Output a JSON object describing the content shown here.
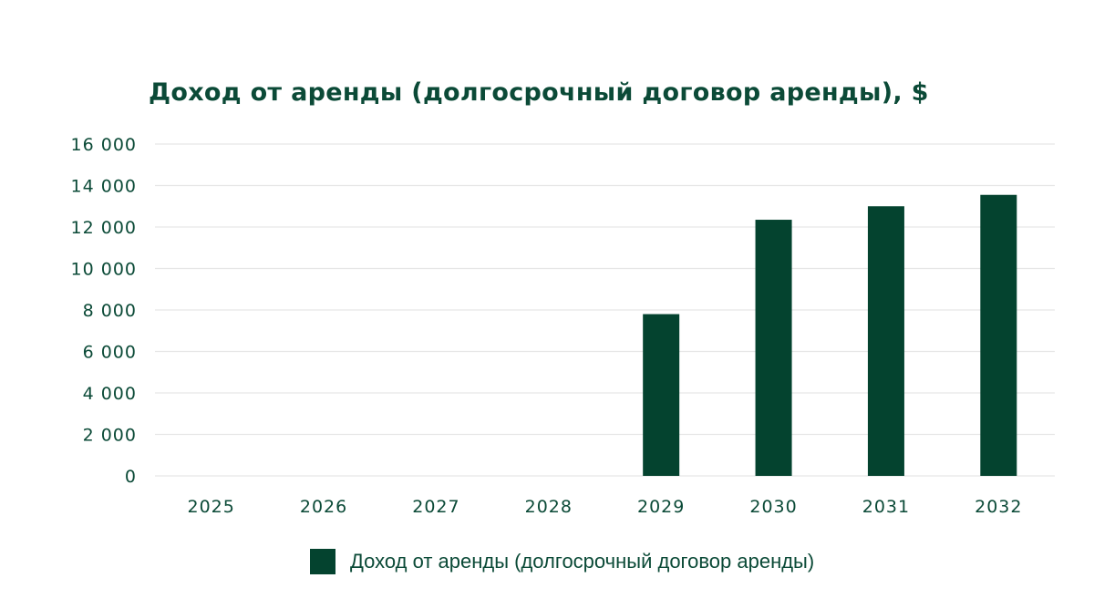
{
  "chart_data": {
    "type": "bar",
    "title": "Доход от аренды (долгосрочный договор аренды), $",
    "categories": [
      "2025",
      "2026",
      "2027",
      "2028",
      "2029",
      "2030",
      "2031",
      "2032"
    ],
    "series": [
      {
        "name": "Доход от аренды (долгосрочный договор аренды)",
        "values": [
          0,
          0,
          0,
          0,
          7800,
          12350,
          13000,
          13550
        ],
        "color": "#04432f"
      }
    ],
    "ylim": [
      0,
      16000
    ],
    "yticks": [
      0,
      2000,
      4000,
      6000,
      8000,
      10000,
      12000,
      14000,
      16000
    ],
    "ytick_labels": [
      "0",
      "2 000",
      "4 000",
      "6 000",
      "8 000",
      "10 000",
      "12 000",
      "14 000",
      "16 000"
    ],
    "grid": true,
    "legend_position": "bottom-center",
    "colors": {
      "text": "#0b4a37",
      "grid": "#e6e6e6"
    }
  }
}
